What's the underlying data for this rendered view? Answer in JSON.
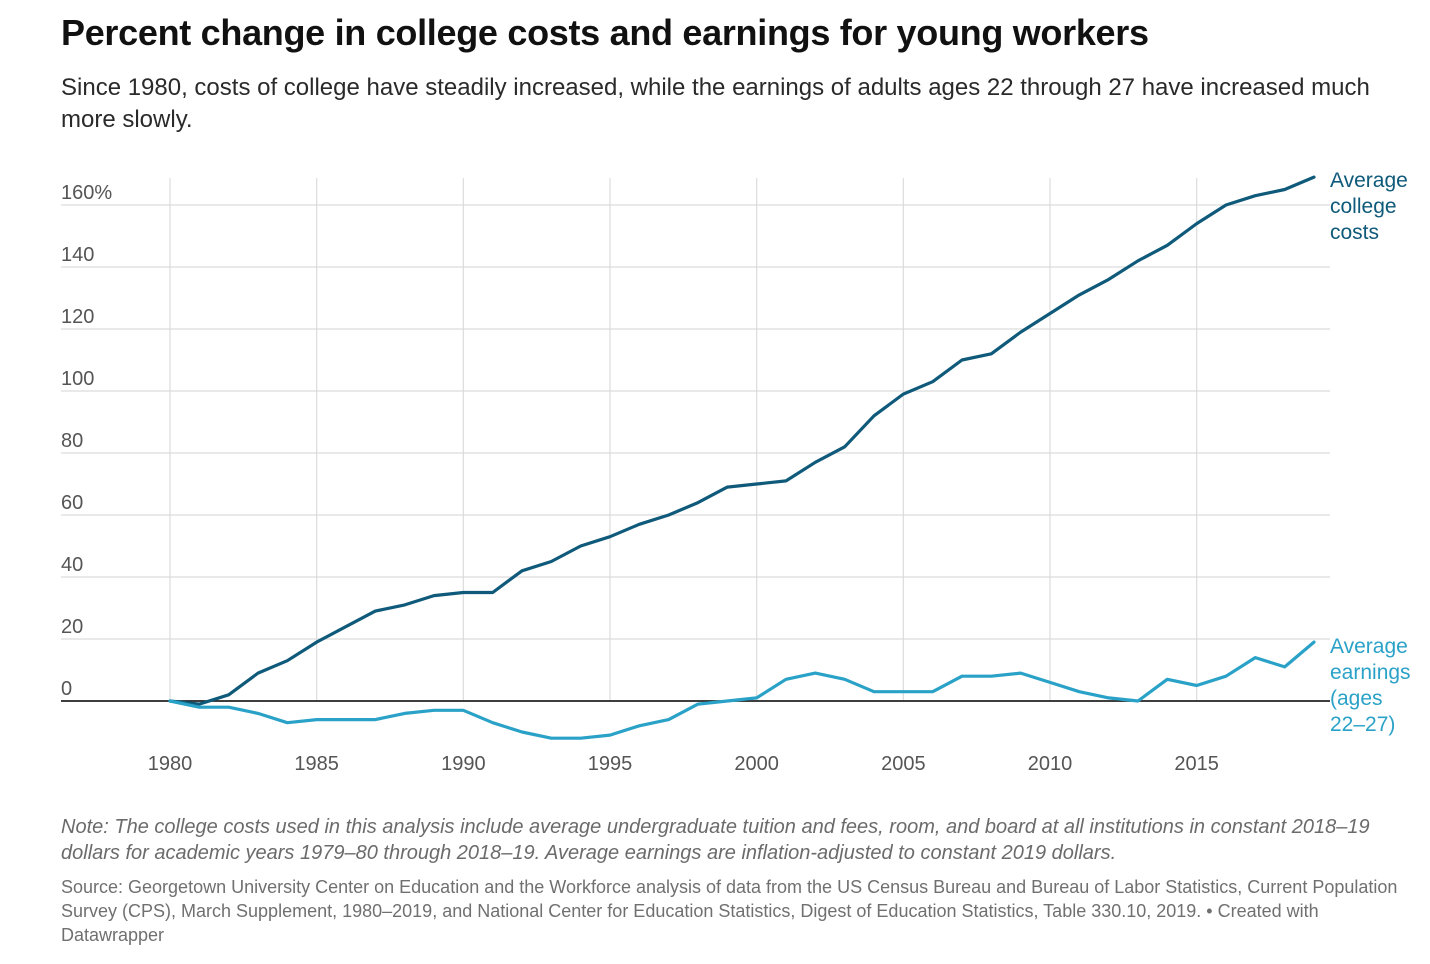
{
  "title": "Percent change in college costs and earnings for young workers",
  "subtitle": "Since 1980, costs of college have steadily increased, while the earnings of adults ages 22 through 27 have increased much more slowly.",
  "note": "Note: The college costs used in this analysis include average undergraduate tuition and fees, room, and board at all institutions in constant 2018–19 dollars for academic years 1979–80 through 2018–19. Average earnings are inflation-adjusted to constant 2019 dollars.",
  "source": "Source: Georgetown University Center on Education and the Workforce analysis of data from the US Census Bureau and Bureau of Labor Statistics, Current Population Survey (CPS), March Supplement, 1980–2019, and National Center for Education Statistics, Digest of Education Statistics, Table 330.10, 2019. • Created with Datawrapper",
  "chart_data": {
    "type": "line",
    "title": "Percent change in college costs and earnings for young workers",
    "xlabel": "",
    "ylabel": "",
    "xlim": [
      1980,
      2019
    ],
    "ylim": [
      -15,
      170
    ],
    "x_ticks": [
      1980,
      1985,
      1990,
      1995,
      2000,
      2005,
      2010,
      2015
    ],
    "y_ticks": [
      0,
      20,
      40,
      60,
      80,
      100,
      120,
      140,
      160
    ],
    "y_tick_labels": [
      "0",
      "20",
      "40",
      "60",
      "80",
      "100",
      "120",
      "140",
      "160%"
    ],
    "grid": true,
    "legend": "direct labels at right end of lines",
    "x": [
      1980,
      1981,
      1982,
      1983,
      1984,
      1985,
      1986,
      1987,
      1988,
      1989,
      1990,
      1991,
      1992,
      1993,
      1994,
      1995,
      1996,
      1997,
      1998,
      1999,
      2000,
      2001,
      2002,
      2003,
      2004,
      2005,
      2006,
      2007,
      2008,
      2009,
      2010,
      2011,
      2012,
      2013,
      2014,
      2015,
      2016,
      2017,
      2018,
      2019
    ],
    "series": [
      {
        "name": "Average college costs",
        "label_lines": [
          "Average",
          "college",
          "costs"
        ],
        "color": "#0f5a7a",
        "values": [
          0,
          -1,
          2,
          9,
          13,
          19,
          24,
          29,
          31,
          34,
          35,
          35,
          42,
          45,
          50,
          53,
          57,
          60,
          64,
          69,
          70,
          71,
          77,
          82,
          92,
          99,
          103,
          110,
          112,
          119,
          125,
          131,
          136,
          142,
          147,
          154,
          160,
          163,
          165,
          169
        ]
      },
      {
        "name": "Average earnings (ages 22–27)",
        "label_lines": [
          "Average",
          "earnings",
          "(ages",
          "22–27)"
        ],
        "color": "#2aa2c8",
        "values": [
          0,
          -2,
          -2,
          -4,
          -7,
          -6,
          -6,
          -6,
          -4,
          -3,
          -3,
          -7,
          -10,
          -12,
          -12,
          -11,
          -8,
          -6,
          -1,
          0,
          1,
          7,
          9,
          7,
          3,
          3,
          3,
          8,
          8,
          9,
          6,
          3,
          1,
          0,
          7,
          5,
          8,
          14,
          11,
          19
        ]
      }
    ]
  },
  "colors": {
    "costs_line": "#0f5a7a",
    "earnings_line": "#2aa2c8",
    "grid": "#dcdcdc",
    "zero_line": "#222222",
    "tick_text": "#555555"
  }
}
